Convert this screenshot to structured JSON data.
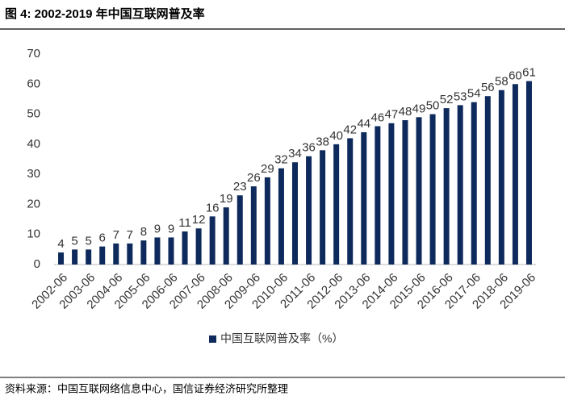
{
  "chart_data": {
    "type": "bar",
    "title": "图 4: 2002-2019 年中国互联网普及率",
    "source": "资料来源：中国互联网络信息中心，国信证券经济研究所整理",
    "categories": [
      "2002-06",
      null,
      "2003-06",
      null,
      "2004-06",
      null,
      "2005-06",
      null,
      "2006-06",
      null,
      "2007-06",
      null,
      "2008-06",
      null,
      "2009-06",
      null,
      "2010-06",
      null,
      "2011-06",
      null,
      "2012-06",
      null,
      "2013-06",
      null,
      "2014-06",
      null,
      "2015-06",
      null,
      "2016-06",
      null,
      "2017-06",
      null,
      "2018-06",
      null,
      "2019-06"
    ],
    "series": [
      {
        "name": "中国互联网普及率（%）",
        "color": "#0e2a5c",
        "values": [
          4,
          5,
          5,
          6,
          7,
          7,
          8,
          9,
          9,
          11,
          12,
          16,
          19,
          23,
          26,
          29,
          32,
          34,
          36,
          38,
          40,
          42,
          44,
          46,
          47,
          48,
          49,
          50,
          52,
          53,
          54,
          56,
          58,
          60,
          61
        ]
      }
    ],
    "ylim": [
      0,
      70
    ],
    "yticks": [
      0,
      10,
      20,
      30,
      40,
      50,
      60,
      70
    ],
    "grid": false,
    "legend": "bottom"
  }
}
